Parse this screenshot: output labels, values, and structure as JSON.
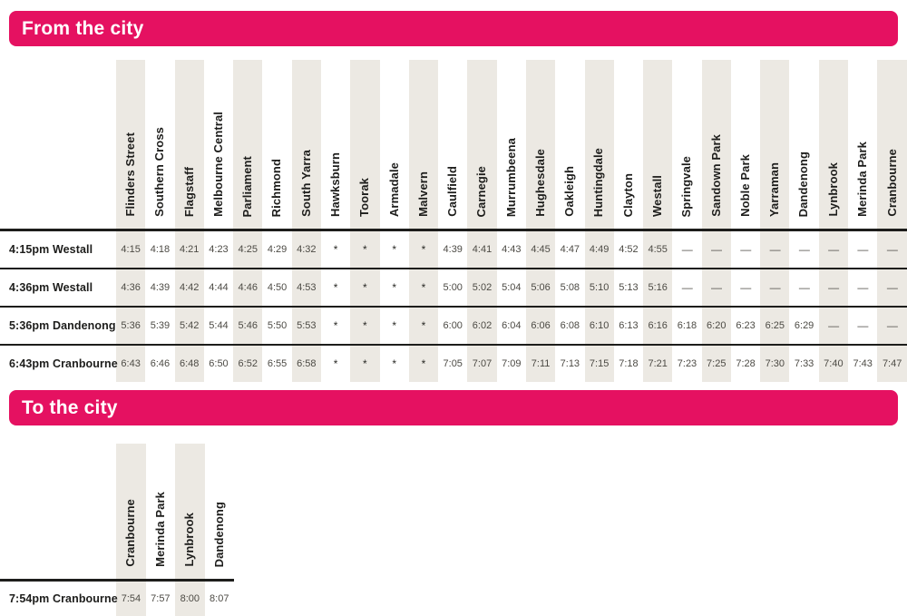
{
  "colors": {
    "accent_pink": "#e51161",
    "band_beige": "#ece9e3",
    "text_dark": "#1d1d1b",
    "text_time": "#4c4a44"
  },
  "symbols": {
    "skip_stop": "*",
    "no_service": "—"
  },
  "sections": [
    {
      "title": "From the city",
      "stations": [
        "Flinders Street",
        "Southern Cross",
        "Flagstaff",
        "Melbourne Central",
        "Parliament",
        "Richmond",
        "South Yarra",
        "Hawksburn",
        "Toorak",
        "Armadale",
        "Malvern",
        "Caulfield",
        "Carnegie",
        "Murrumbeena",
        "Hughesdale",
        "Oakleigh",
        "Huntingdale",
        "Clayton",
        "Westall",
        "Springvale",
        "Sandown Park",
        "Noble Park",
        "Yarraman",
        "Dandenong",
        "Lynbrook",
        "Merinda Park",
        "Cranbourne"
      ],
      "rows": [
        {
          "label": "4:15pm Westall",
          "times": [
            "4:15",
            "4:18",
            "4:21",
            "4:23",
            "4:25",
            "4:29",
            "4:32",
            "*",
            "*",
            "*",
            "*",
            "4:39",
            "4:41",
            "4:43",
            "4:45",
            "4:47",
            "4:49",
            "4:52",
            "4:55",
            "—",
            "—",
            "—",
            "—",
            "—",
            "—",
            "—",
            "—"
          ]
        },
        {
          "label": "4:36pm Westall",
          "times": [
            "4:36",
            "4:39",
            "4:42",
            "4:44",
            "4:46",
            "4:50",
            "4:53",
            "*",
            "*",
            "*",
            "*",
            "5:00",
            "5:02",
            "5:04",
            "5:06",
            "5:08",
            "5:10",
            "5:13",
            "5:16",
            "—",
            "—",
            "—",
            "—",
            "—",
            "—",
            "—",
            "—"
          ]
        },
        {
          "label": "5:36pm Dandenong",
          "times": [
            "5:36",
            "5:39",
            "5:42",
            "5:44",
            "5:46",
            "5:50",
            "5:53",
            "*",
            "*",
            "*",
            "*",
            "6:00",
            "6:02",
            "6:04",
            "6:06",
            "6:08",
            "6:10",
            "6:13",
            "6:16",
            "6:18",
            "6:20",
            "6:23",
            "6:25",
            "6:29",
            "—",
            "—",
            "—"
          ]
        },
        {
          "label": "6:43pm Cranbourne",
          "times": [
            "6:43",
            "6:46",
            "6:48",
            "6:50",
            "6:52",
            "6:55",
            "6:58",
            "*",
            "*",
            "*",
            "*",
            "7:05",
            "7:07",
            "7:09",
            "7:11",
            "7:13",
            "7:15",
            "7:18",
            "7:21",
            "7:23",
            "7:25",
            "7:28",
            "7:30",
            "7:33",
            "7:40",
            "7:43",
            "7:47"
          ]
        }
      ]
    },
    {
      "title": "To the city",
      "stations": [
        "Cranbourne",
        "Merinda Park",
        "Lynbrook",
        "Dandenong"
      ],
      "rows": [
        {
          "label": "7:54pm Cranbourne",
          "times": [
            "7:54",
            "7:57",
            "8:00",
            "8:07"
          ]
        }
      ]
    }
  ]
}
